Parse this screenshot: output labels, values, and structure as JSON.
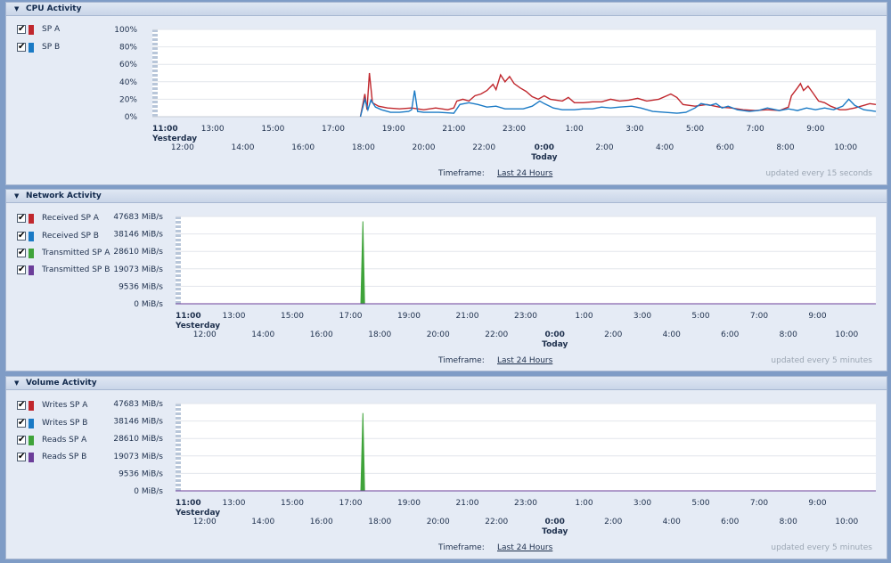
{
  "timeframe_label": "Timeframe:",
  "timeframe_value": "Last 24 Hours",
  "xaxis": {
    "upper": [
      {
        "label": "11:00",
        "sub": "Yesterday",
        "bold": true
      },
      {
        "label": "13:00"
      },
      {
        "label": "15:00"
      },
      {
        "label": "17:00"
      },
      {
        "label": "19:00"
      },
      {
        "label": "21:00"
      },
      {
        "label": "23:00"
      },
      {
        "label": "1:00"
      },
      {
        "label": "3:00"
      },
      {
        "label": "5:00"
      },
      {
        "label": "7:00"
      },
      {
        "label": "9:00"
      }
    ],
    "lower": [
      {
        "label": "12:00"
      },
      {
        "label": "14:00"
      },
      {
        "label": "16:00"
      },
      {
        "label": "18:00"
      },
      {
        "label": "20:00"
      },
      {
        "label": "22:00"
      },
      {
        "label": "0:00",
        "sub": "Today",
        "bold": true
      },
      {
        "label": "2:00"
      },
      {
        "label": "4:00"
      },
      {
        "label": "6:00"
      },
      {
        "label": "8:00"
      },
      {
        "label": "10:00"
      }
    ]
  },
  "panels": [
    {
      "title": "CPU Activity",
      "update_text": "updated every 15 seconds",
      "legend": [
        {
          "label": "SP A",
          "color": "#c0272d",
          "checked": "✔"
        },
        {
          "label": "SP B",
          "color": "#1a7ac5",
          "checked": "✔"
        }
      ],
      "y_ticks": [
        "100%",
        "80%",
        "60%",
        "40%",
        "20%",
        "0%"
      ]
    },
    {
      "title": "Network Activity",
      "update_text": "updated every 5 minutes",
      "legend": [
        {
          "label": "Received SP A",
          "color": "#c0272d",
          "checked": "✔"
        },
        {
          "label": "Received SP B",
          "color": "#1a7ac5",
          "checked": "✔"
        },
        {
          "label": "Transmitted SP A",
          "color": "#3fa33a",
          "checked": "✔"
        },
        {
          "label": "Transmitted SP B",
          "color": "#6b3d99",
          "checked": "✔"
        }
      ],
      "y_ticks": [
        "47683 MiB/s",
        "38146 MiB/s",
        "28610 MiB/s",
        "19073 MiB/s",
        "9536 MiB/s",
        "0 MiB/s"
      ]
    },
    {
      "title": "Volume Activity",
      "update_text": "updated every 5 minutes",
      "legend": [
        {
          "label": "Writes SP A",
          "color": "#c0272d",
          "checked": "✔"
        },
        {
          "label": "Writes SP B",
          "color": "#1a7ac5",
          "checked": "✔"
        },
        {
          "label": "Reads SP A",
          "color": "#3fa33a",
          "checked": "✔"
        },
        {
          "label": "Reads SP B",
          "color": "#6b3d99",
          "checked": "✔"
        }
      ],
      "y_ticks": [
        "47683 MiB/s",
        "38146 MiB/s",
        "28610 MiB/s",
        "19073 MiB/s",
        "9536 MiB/s",
        "0 MiB/s"
      ]
    }
  ],
  "chart_data": [
    {
      "type": "line",
      "xlim": [
        0,
        24
      ],
      "ylim": [
        0,
        100
      ],
      "series": [
        {
          "name": "SP A",
          "color": "#c0272d",
          "values": [
            [
              6.9,
              0
            ],
            [
              7.05,
              26
            ],
            [
              7.12,
              8
            ],
            [
              7.2,
              50
            ],
            [
              7.3,
              16
            ],
            [
              7.5,
              12
            ],
            [
              7.8,
              10
            ],
            [
              8.2,
              9
            ],
            [
              8.6,
              10
            ],
            [
              9,
              8
            ],
            [
              9.4,
              10
            ],
            [
              9.8,
              8
            ],
            [
              10,
              10
            ],
            [
              10.1,
              18
            ],
            [
              10.3,
              20
            ],
            [
              10.5,
              18
            ],
            [
              10.7,
              24
            ],
            [
              10.9,
              26
            ],
            [
              11.1,
              30
            ],
            [
              11.3,
              37
            ],
            [
              11.4,
              31
            ],
            [
              11.55,
              48
            ],
            [
              11.7,
              40
            ],
            [
              11.85,
              46
            ],
            [
              12,
              38
            ],
            [
              12.2,
              33
            ],
            [
              12.4,
              29
            ],
            [
              12.6,
              23
            ],
            [
              12.8,
              20
            ],
            [
              13,
              24
            ],
            [
              13.2,
              20
            ],
            [
              13.4,
              19
            ],
            [
              13.6,
              18
            ],
            [
              13.8,
              22
            ],
            [
              14,
              16
            ],
            [
              14.3,
              16
            ],
            [
              14.6,
              17
            ],
            [
              14.9,
              17
            ],
            [
              15.2,
              20
            ],
            [
              15.5,
              18
            ],
            [
              15.8,
              19
            ],
            [
              16.1,
              21
            ],
            [
              16.4,
              18
            ],
            [
              16.8,
              20
            ],
            [
              17.2,
              26
            ],
            [
              17.4,
              22
            ],
            [
              17.6,
              14
            ],
            [
              18,
              12
            ],
            [
              18.4,
              14
            ],
            [
              18.8,
              11
            ],
            [
              19.2,
              10
            ],
            [
              19.6,
              8
            ],
            [
              20,
              7
            ],
            [
              20.4,
              8
            ],
            [
              20.8,
              7
            ],
            [
              21.1,
              11
            ],
            [
              21.2,
              24
            ],
            [
              21.4,
              33
            ],
            [
              21.5,
              38
            ],
            [
              21.6,
              30
            ],
            [
              21.75,
              35
            ],
            [
              21.9,
              28
            ],
            [
              22.1,
              18
            ],
            [
              22.3,
              16
            ],
            [
              22.5,
              12
            ],
            [
              22.8,
              8
            ],
            [
              23,
              8
            ],
            [
              23.3,
              10
            ],
            [
              23.6,
              13
            ],
            [
              23.8,
              15
            ],
            [
              24,
              14
            ]
          ]
        },
        {
          "name": "SP B",
          "color": "#1a7ac5",
          "values": [
            [
              6.9,
              0
            ],
            [
              7.05,
              20
            ],
            [
              7.15,
              8
            ],
            [
              7.25,
              19
            ],
            [
              7.4,
              11
            ],
            [
              7.6,
              8
            ],
            [
              7.9,
              5
            ],
            [
              8.2,
              5
            ],
            [
              8.5,
              6
            ],
            [
              8.6,
              8
            ],
            [
              8.7,
              30
            ],
            [
              8.8,
              6
            ],
            [
              9,
              5
            ],
            [
              9.5,
              5
            ],
            [
              10,
              4
            ],
            [
              10.2,
              14
            ],
            [
              10.5,
              16
            ],
            [
              10.8,
              14
            ],
            [
              11.1,
              11
            ],
            [
              11.4,
              12
            ],
            [
              11.7,
              9
            ],
            [
              12,
              9
            ],
            [
              12.3,
              9
            ],
            [
              12.6,
              12
            ],
            [
              12.85,
              18
            ],
            [
              13,
              15
            ],
            [
              13.3,
              10
            ],
            [
              13.6,
              8
            ],
            [
              14,
              8
            ],
            [
              14.3,
              9
            ],
            [
              14.6,
              9
            ],
            [
              14.9,
              11
            ],
            [
              15.2,
              10
            ],
            [
              15.5,
              11
            ],
            [
              15.9,
              12
            ],
            [
              16.2,
              10
            ],
            [
              16.6,
              6
            ],
            [
              17,
              5
            ],
            [
              17.4,
              4
            ],
            [
              17.7,
              5
            ],
            [
              18,
              10
            ],
            [
              18.2,
              15
            ],
            [
              18.5,
              13
            ],
            [
              18.7,
              15
            ],
            [
              18.9,
              10
            ],
            [
              19.1,
              12
            ],
            [
              19.4,
              8
            ],
            [
              19.8,
              6
            ],
            [
              20.1,
              7
            ],
            [
              20.4,
              10
            ],
            [
              20.8,
              7
            ],
            [
              21.1,
              9
            ],
            [
              21.4,
              7
            ],
            [
              21.7,
              10
            ],
            [
              22,
              8
            ],
            [
              22.3,
              10
            ],
            [
              22.6,
              8
            ],
            [
              22.9,
              12
            ],
            [
              23.1,
              20
            ],
            [
              23.3,
              13
            ],
            [
              23.6,
              8
            ],
            [
              23.8,
              7
            ],
            [
              24,
              6
            ]
          ]
        }
      ]
    },
    {
      "type": "area",
      "xlim": [
        0,
        24
      ],
      "ylim": [
        0,
        47683
      ],
      "series": [
        {
          "name": "Received SP A",
          "color": "#c0272d",
          "values": [
            [
              0,
              0
            ],
            [
              24,
              0
            ]
          ]
        },
        {
          "name": "Received SP B",
          "color": "#1a7ac5",
          "values": [
            [
              0,
              0
            ],
            [
              24,
              0
            ]
          ]
        },
        {
          "name": "Transmitted SP A",
          "color": "#3fa33a",
          "values": [
            [
              0,
              0
            ],
            [
              6.35,
              0
            ],
            [
              6.42,
              45000
            ],
            [
              6.48,
              0
            ],
            [
              24,
              0
            ]
          ]
        },
        {
          "name": "Transmitted SP B",
          "color": "#6b3d99",
          "values": [
            [
              0,
              0
            ],
            [
              24,
              0
            ]
          ]
        }
      ]
    },
    {
      "type": "area",
      "xlim": [
        0,
        24
      ],
      "ylim": [
        0,
        47683
      ],
      "series": [
        {
          "name": "Writes SP A",
          "color": "#c0272d",
          "values": [
            [
              0,
              0
            ],
            [
              24,
              0
            ]
          ]
        },
        {
          "name": "Writes SP B",
          "color": "#1a7ac5",
          "values": [
            [
              0,
              0
            ],
            [
              24,
              0
            ]
          ]
        },
        {
          "name": "Reads SP A",
          "color": "#3fa33a",
          "values": [
            [
              0,
              0
            ],
            [
              6.35,
              0
            ],
            [
              6.42,
              42500
            ],
            [
              6.48,
              0
            ],
            [
              24,
              0
            ]
          ]
        },
        {
          "name": "Reads SP B",
          "color": "#6b3d99",
          "values": [
            [
              0,
              0
            ],
            [
              24,
              0
            ]
          ]
        }
      ]
    }
  ]
}
